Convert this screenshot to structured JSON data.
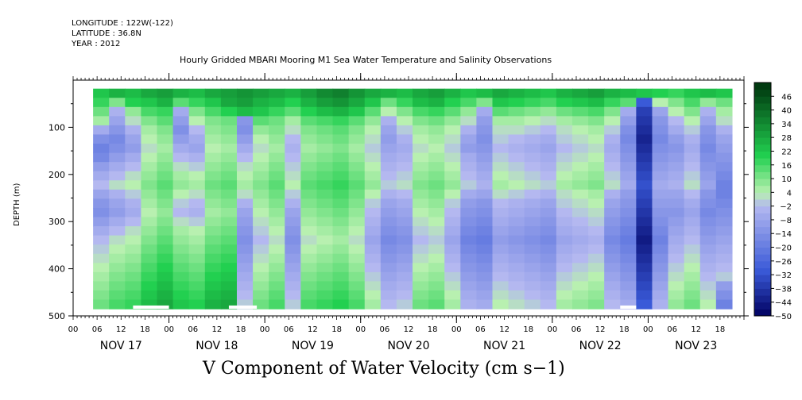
{
  "header": {
    "longitude": "LONGITUDE : 122W(-122)",
    "latitude": "LATITUDE : 36.8N",
    "year": "YEAR : 2012"
  },
  "colors": {
    "neg_strong": "#000060",
    "neg_mid": "#3a5ad8",
    "neg_light": "#b4b8f0",
    "pos_light": "#b8f0b0",
    "pos_mid": "#22d050",
    "pos_strong": "#003a10",
    "missing": "#ffffff"
  },
  "chart_data": {
    "type": "heatmap",
    "title": "Hourly Gridded MBARI Mooring M1 Sea Water Temperature and Salinity Observations",
    "xlabel": "V Component of Water Velocity (cm s−1)",
    "ylabel": "DEPTH (m)",
    "y_ticks": [
      100,
      200,
      300,
      400,
      500
    ],
    "ylim": [
      500,
      0
    ],
    "x_hour_labels": [
      "00",
      "06",
      "12",
      "18",
      "00",
      "06",
      "12",
      "18",
      "00",
      "06",
      "12",
      "18",
      "00",
      "06",
      "12",
      "18",
      "00",
      "06",
      "12",
      "18",
      "00",
      "06",
      "12",
      "18",
      "00",
      "06",
      "12",
      "18"
    ],
    "x_day_labels": [
      "NOV 17",
      "NOV 18",
      "NOV 19",
      "NOV 20",
      "NOV 21",
      "NOV 22",
      "NOV 23"
    ],
    "colorbar_levels": [
      46,
      40,
      34,
      28,
      22,
      16,
      10,
      4,
      -2,
      -8,
      -14,
      -20,
      -26,
      -32,
      -38,
      -44,
      -50
    ],
    "colorbar_range": [
      -50,
      52
    ],
    "data_start_hour": 5,
    "data_end_hour": 165,
    "depth_top": 18,
    "depth_bottom": 485,
    "grid_rows": 24,
    "grid_cols": 40,
    "values": [
      [
        22,
        26,
        24,
        28,
        30,
        26,
        24,
        28,
        30,
        32,
        30,
        28,
        26,
        30,
        34,
        36,
        32,
        28,
        26,
        24,
        28,
        30,
        26,
        22,
        24,
        28,
        26,
        24,
        22,
        26,
        28,
        30,
        26,
        24,
        22,
        20,
        18,
        22,
        24,
        22
      ],
      [
        18,
        10,
        20,
        22,
        26,
        14,
        18,
        22,
        28,
        30,
        26,
        24,
        20,
        26,
        30,
        32,
        28,
        22,
        12,
        18,
        24,
        26,
        20,
        16,
        10,
        22,
        20,
        18,
        16,
        20,
        22,
        24,
        18,
        14,
        -30,
        4,
        10,
        16,
        8,
        12
      ],
      [
        12,
        -4,
        8,
        16,
        18,
        -6,
        10,
        16,
        20,
        24,
        22,
        18,
        14,
        20,
        24,
        26,
        22,
        14,
        4,
        10,
        16,
        18,
        14,
        8,
        -6,
        14,
        12,
        10,
        8,
        12,
        14,
        16,
        10,
        -6,
        -36,
        -8,
        4,
        10,
        -4,
        6
      ],
      [
        6,
        -8,
        2,
        10,
        14,
        -10,
        4,
        10,
        12,
        -12,
        14,
        12,
        6,
        14,
        16,
        18,
        14,
        8,
        -4,
        4,
        10,
        12,
        8,
        2,
        -10,
        6,
        6,
        4,
        2,
        6,
        8,
        10,
        4,
        -10,
        -38,
        -12,
        -2,
        4,
        -8,
        2
      ],
      [
        -6,
        -12,
        -4,
        6,
        10,
        -14,
        -2,
        8,
        10,
        -14,
        8,
        10,
        2,
        10,
        12,
        14,
        10,
        4,
        -8,
        0,
        6,
        8,
        4,
        -4,
        -12,
        2,
        2,
        0,
        -2,
        2,
        4,
        6,
        0,
        -14,
        -40,
        -14,
        -6,
        0,
        -12,
        -4
      ],
      [
        -14,
        -16,
        -8,
        4,
        8,
        -10,
        -6,
        6,
        8,
        -10,
        4,
        8,
        -2,
        8,
        10,
        12,
        8,
        2,
        -10,
        -4,
        4,
        6,
        2,
        -8,
        -14,
        0,
        -2,
        -4,
        -6,
        0,
        2,
        4,
        -4,
        -16,
        -42,
        -16,
        -10,
        -4,
        -14,
        -8
      ],
      [
        -18,
        -14,
        -10,
        2,
        6,
        -6,
        -8,
        4,
        6,
        -6,
        2,
        6,
        -4,
        6,
        8,
        10,
        6,
        0,
        -8,
        -6,
        2,
        4,
        0,
        -10,
        -12,
        -2,
        -4,
        -6,
        -8,
        -2,
        0,
        2,
        -6,
        -14,
        -40,
        -14,
        -12,
        -6,
        -16,
        -10
      ],
      [
        -16,
        -10,
        -6,
        4,
        8,
        -2,
        -4,
        6,
        8,
        -2,
        4,
        8,
        -2,
        8,
        10,
        12,
        8,
        2,
        -6,
        -4,
        4,
        6,
        2,
        -6,
        -10,
        0,
        -2,
        -4,
        -6,
        0,
        2,
        4,
        -4,
        -12,
        -38,
        -12,
        -10,
        -4,
        -14,
        -12
      ],
      [
        -10,
        -6,
        -2,
        6,
        10,
        2,
        0,
        8,
        10,
        2,
        6,
        10,
        0,
        10,
        12,
        14,
        10,
        4,
        -4,
        -2,
        6,
        8,
        4,
        -4,
        -8,
        2,
        0,
        -2,
        -4,
        2,
        4,
        6,
        -2,
        -10,
        -36,
        -10,
        -8,
        -2,
        -12,
        -14
      ],
      [
        -6,
        -2,
        2,
        8,
        12,
        6,
        4,
        10,
        12,
        4,
        8,
        12,
        2,
        12,
        14,
        16,
        12,
        6,
        -2,
        0,
        8,
        10,
        6,
        -2,
        -6,
        4,
        2,
        0,
        -2,
        4,
        6,
        8,
        0,
        -8,
        -34,
        -8,
        -6,
        0,
        -10,
        -16
      ],
      [
        -2,
        2,
        4,
        10,
        14,
        8,
        6,
        12,
        14,
        6,
        10,
        14,
        4,
        14,
        16,
        18,
        14,
        8,
        0,
        2,
        10,
        12,
        8,
        0,
        -4,
        6,
        4,
        2,
        0,
        6,
        8,
        10,
        2,
        -6,
        -32,
        -6,
        -4,
        2,
        -8,
        -18
      ],
      [
        -8,
        -4,
        0,
        8,
        12,
        4,
        2,
        10,
        12,
        2,
        8,
        12,
        0,
        12,
        14,
        16,
        12,
        4,
        -4,
        -2,
        8,
        10,
        4,
        -6,
        -8,
        2,
        0,
        -2,
        -4,
        2,
        4,
        6,
        -4,
        -10,
        -34,
        -8,
        -8,
        -2,
        -12,
        -18
      ],
      [
        -12,
        -8,
        -4,
        6,
        10,
        0,
        -2,
        8,
        10,
        -4,
        6,
        10,
        -4,
        10,
        12,
        14,
        10,
        0,
        -8,
        -6,
        6,
        8,
        0,
        -10,
        -12,
        -2,
        -4,
        -6,
        -8,
        0,
        2,
        4,
        -8,
        -12,
        -36,
        -10,
        -10,
        -6,
        -14,
        -16
      ],
      [
        -14,
        -10,
        -6,
        4,
        8,
        -2,
        -4,
        6,
        8,
        -8,
        4,
        8,
        -8,
        8,
        10,
        12,
        8,
        -2,
        -10,
        -8,
        4,
        6,
        -2,
        -12,
        -14,
        -4,
        -6,
        -8,
        -10,
        -2,
        0,
        2,
        -10,
        -14,
        -38,
        -12,
        -12,
        -8,
        -16,
        -14
      ],
      [
        -10,
        -6,
        -2,
        6,
        10,
        2,
        0,
        8,
        10,
        -10,
        2,
        6,
        -10,
        6,
        8,
        10,
        6,
        -4,
        -12,
        -10,
        2,
        4,
        -4,
        -14,
        -16,
        -6,
        -8,
        -10,
        -12,
        -4,
        -2,
        0,
        -12,
        -16,
        -40,
        -14,
        -10,
        -6,
        -14,
        -12
      ],
      [
        -6,
        -2,
        2,
        8,
        12,
        6,
        4,
        10,
        12,
        -12,
        0,
        4,
        -12,
        4,
        6,
        8,
        4,
        -6,
        -14,
        -12,
        0,
        2,
        -6,
        -16,
        -18,
        -8,
        -10,
        -12,
        -14,
        -6,
        -4,
        -2,
        -14,
        -18,
        -42,
        -16,
        -8,
        -4,
        -12,
        -10
      ],
      [
        -2,
        2,
        4,
        10,
        14,
        8,
        6,
        12,
        14,
        -14,
        -2,
        2,
        -14,
        2,
        4,
        6,
        2,
        -8,
        -16,
        -14,
        -2,
        0,
        -8,
        -18,
        -20,
        -10,
        -12,
        -14,
        -16,
        -8,
        -6,
        -4,
        -16,
        -20,
        -44,
        -18,
        -6,
        -2,
        -10,
        -8
      ],
      [
        0,
        4,
        6,
        12,
        16,
        10,
        8,
        14,
        16,
        -12,
        0,
        4,
        -12,
        4,
        6,
        8,
        4,
        -6,
        -14,
        -12,
        0,
        2,
        -6,
        -16,
        -18,
        -8,
        -10,
        -12,
        -14,
        -6,
        -4,
        -2,
        -14,
        -18,
        -42,
        -16,
        -4,
        0,
        -8,
        -6
      ],
      [
        2,
        6,
        8,
        14,
        18,
        12,
        10,
        16,
        18,
        -10,
        2,
        6,
        -10,
        6,
        8,
        10,
        6,
        -4,
        -12,
        -10,
        2,
        4,
        -4,
        -14,
        -16,
        -6,
        -8,
        -10,
        -12,
        -4,
        -2,
        0,
        -12,
        -16,
        -40,
        -14,
        -2,
        2,
        -6,
        -4
      ],
      [
        4,
        8,
        10,
        16,
        20,
        14,
        12,
        18,
        20,
        -8,
        4,
        8,
        -8,
        8,
        10,
        12,
        8,
        -2,
        -10,
        -8,
        4,
        6,
        -2,
        -12,
        -14,
        -4,
        -6,
        -8,
        -10,
        -2,
        0,
        2,
        -10,
        -14,
        -38,
        -12,
        0,
        4,
        -4,
        -2
      ],
      [
        6,
        10,
        12,
        18,
        22,
        16,
        14,
        20,
        22,
        -6,
        6,
        10,
        -6,
        10,
        12,
        14,
        10,
        0,
        -8,
        -6,
        6,
        8,
        0,
        -10,
        -12,
        -2,
        -4,
        -6,
        -8,
        0,
        2,
        4,
        -8,
        -12,
        -36,
        -10,
        2,
        6,
        -2,
        0
      ],
      [
        8,
        12,
        14,
        20,
        24,
        18,
        16,
        22,
        24,
        -4,
        8,
        12,
        -4,
        12,
        14,
        16,
        12,
        2,
        -6,
        -4,
        8,
        10,
        2,
        -8,
        -10,
        0,
        -2,
        -4,
        -6,
        2,
        4,
        6,
        -6,
        -10,
        -34,
        -8,
        4,
        8,
        0,
        -10
      ],
      [
        10,
        14,
        16,
        22,
        26,
        20,
        18,
        24,
        26,
        -2,
        10,
        14,
        -2,
        14,
        16,
        18,
        14,
        4,
        -4,
        -2,
        10,
        12,
        4,
        -6,
        -8,
        2,
        0,
        -2,
        -4,
        4,
        6,
        8,
        -4,
        -8,
        -32,
        -6,
        6,
        10,
        2,
        -14
      ],
      [
        12,
        16,
        18,
        24,
        28,
        22,
        20,
        26,
        28,
        0,
        12,
        16,
        0,
        16,
        18,
        20,
        16,
        6,
        -2,
        0,
        12,
        14,
        6,
        -4,
        -6,
        4,
        2,
        0,
        -2,
        6,
        8,
        10,
        -2,
        -6,
        -30,
        -4,
        8,
        12,
        4,
        -18
      ]
    ],
    "missing_bottom_hours": [
      [
        15,
        24
      ],
      [
        39,
        46
      ],
      [
        137,
        141
      ]
    ]
  }
}
